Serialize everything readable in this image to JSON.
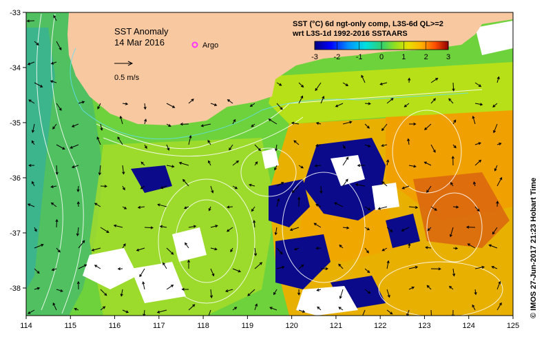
{
  "map": {
    "title": "SST Anomaly",
    "date": "14 Mar 2016",
    "legend_argo": "Argo",
    "argo_color": "#ff33ff",
    "scale_label": "0.5 m/s",
    "product_line1": "SST (°C) 6d ngt-only comp, L3S-6d QL>=2",
    "product_line2": "wrt L3S-1d 1992-2016 SSTAARS",
    "credit": "©  IMOS 27-Jun-2017 21:23 Hobart Time",
    "land_color": "#f8c8a0",
    "no_data_color": "#ffffff"
  },
  "axes": {
    "x_ticks": [
      "114",
      "115",
      "116",
      "117",
      "118",
      "119",
      "120",
      "121",
      "122",
      "123",
      "124",
      "125"
    ],
    "y_ticks": [
      "-33",
      "-34",
      "-35",
      "-36",
      "-37",
      "-38"
    ],
    "x_range": [
      114,
      125
    ],
    "y_range": [
      -38.5,
      -33
    ]
  },
  "colorbar": {
    "ticks": [
      "-3",
      "-2",
      "-1",
      "0",
      "1",
      "2",
      "3"
    ],
    "range": [
      -3,
      3
    ],
    "colors": [
      "#000080",
      "#0000ff",
      "#0080ff",
      "#00d0ff",
      "#40e0b0",
      "#80e040",
      "#c0e000",
      "#ffe000",
      "#ffa000",
      "#ff6000",
      "#e02000",
      "#800000"
    ]
  }
}
